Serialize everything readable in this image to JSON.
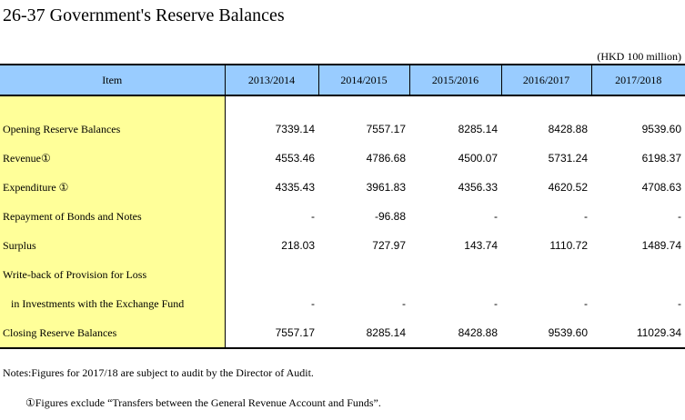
{
  "title": "26-37  Government's Reserve Balances",
  "unit": "(HKD 100 million)",
  "table": {
    "headers": [
      "Item",
      "2013/2014",
      "2014/2015",
      "2015/2016",
      "2016/2017",
      "2017/2018"
    ],
    "rows": [
      {
        "label": "Opening Reserve Balances",
        "values": [
          "7339.14",
          "7557.17",
          "8285.14",
          "8428.88",
          "9539.60"
        ]
      },
      {
        "label": "Revenue①",
        "values": [
          "4553.46",
          "4786.68",
          "4500.07",
          "5731.24",
          "6198.37"
        ]
      },
      {
        "label": "Expenditure ①",
        "values": [
          "4335.43",
          "3961.83",
          "4356.33",
          "4620.52",
          "4708.63"
        ]
      },
      {
        "label": "Repayment of Bonds and Notes",
        "values": [
          "-",
          "-96.88",
          "-",
          "-",
          "-"
        ]
      },
      {
        "label": "Surplus",
        "values": [
          "218.03",
          "727.97",
          "143.74",
          "1110.72",
          "1489.74"
        ]
      },
      {
        "label": "Write-back of Provision for Loss",
        "values": [
          "",
          "",
          "",
          "",
          ""
        ]
      },
      {
        "label": "in Investments with the Exchange Fund",
        "values": [
          "-",
          "-",
          "-",
          "-",
          "-"
        ]
      },
      {
        "label": "Closing Reserve Balances",
        "values": [
          "7557.17",
          "8285.14",
          "8428.88",
          "9539.60",
          "11029.34"
        ]
      }
    ]
  },
  "notes": {
    "note1": "Notes:Figures for 2017/18 are subject to audit by the Director of Audit.",
    "note2": "①Figures exclude “Transfers between the General Revenue Account and Funds”."
  },
  "colors": {
    "header_bg": "#99ccff",
    "label_bg": "#ffff99"
  }
}
